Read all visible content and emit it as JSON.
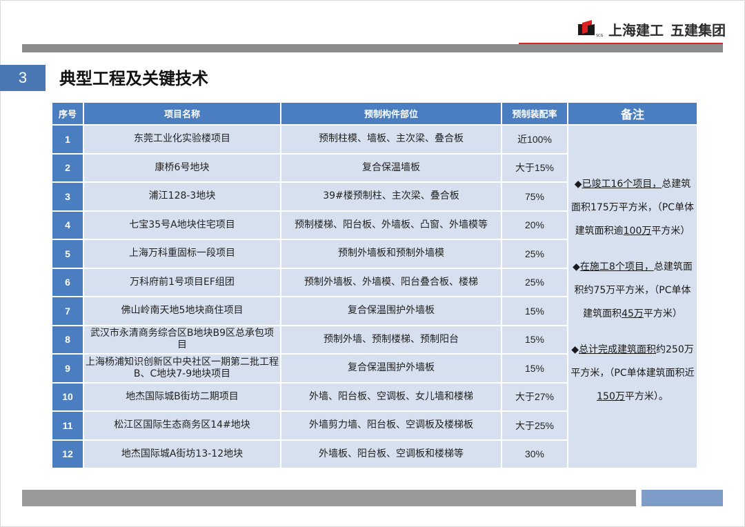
{
  "brand": {
    "logo_sub": "SCG",
    "company_name": "上海建工",
    "group_name": "五建集团"
  },
  "section": {
    "number": "3",
    "title": "典型工程及关键技术"
  },
  "table": {
    "headers": {
      "no": "序号",
      "project": "项目名称",
      "parts": "预制构件部位",
      "rate": "预制装配率",
      "note": "备注"
    },
    "rows": [
      {
        "no": "1",
        "project": "东莞工业化实验楼项目",
        "parts": "预制柱模、墙板、主次梁、叠合板",
        "rate": "近100%"
      },
      {
        "no": "2",
        "project": "康桥6号地块",
        "parts": "复合保温墙板",
        "rate": "大于15%"
      },
      {
        "no": "3",
        "project": "浦江128-3地块",
        "parts": "39#楼预制柱、主次梁、叠合板",
        "rate": "75%"
      },
      {
        "no": "4",
        "project": "七宝35号A地块住宅项目",
        "parts": "预制楼梯、阳台板、外墙板、凸窗、外墙模等",
        "rate": "20%"
      },
      {
        "no": "5",
        "project": "上海万科重固标一段项目",
        "parts": "预制外墙板和预制外墙模",
        "rate": "25%"
      },
      {
        "no": "6",
        "project": "万科府前1号项目EF组团",
        "parts": "预制外墙板、外墙模、阳台叠合板、楼梯",
        "rate": "25%"
      },
      {
        "no": "7",
        "project": "佛山岭南天地5地块商住项目",
        "parts": "复合保温围护外墙板",
        "rate": "15%"
      },
      {
        "no": "8",
        "project": "武汉市永清商务综合区B地块B9区总承包项目",
        "parts": "预制外墙、预制楼梯、预制阳台",
        "rate": "15%"
      },
      {
        "no": "9",
        "project": "上海杨浦知识创新区中央社区一期第二批工程B、C地块7-9地块项目",
        "parts": "复合保温围护外墙板",
        "rate": "15%"
      },
      {
        "no": "10",
        "project": "地杰国际城B街坊二期项目",
        "parts": "外墙、阳台板、空调板、女儿墙和楼梯",
        "rate": "大于27%"
      },
      {
        "no": "11",
        "project": "松江区国际生态商务区14#地块",
        "parts": "外墙剪力墙、阳台板、空调板及楼梯板",
        "rate": "大于25%"
      },
      {
        "no": "12",
        "project": "地杰国际城A街坊13-12地块",
        "parts": "外墙板、阳台板、空调板和楼梯等",
        "rate": "30%"
      }
    ]
  },
  "notes": [
    {
      "bullet": "◆",
      "lead": "已竣工16个项目，",
      "text_a": "总建筑面积175万平方米，（PC单体建筑面积逾",
      "emph": "100万",
      "text_b": "平方米）"
    },
    {
      "bullet": "◆",
      "lead": "在施工8个项目，",
      "text_a": "总建筑面积约75万平方米，（PC单体建筑面积",
      "emph": "45万",
      "text_b": "平方米）"
    },
    {
      "bullet": "◆",
      "lead": "总计完成建筑面积",
      "text_a": "约250万平方米，（PC单体建筑面积近",
      "emph": "150万",
      "text_b": "平方米）。"
    }
  ],
  "colors": {
    "accent_blue": "#4a7ec0",
    "cell_bg": "#d7e0ef",
    "bar_grey": "#8c8c8c",
    "accent_red": "#dd2222"
  }
}
